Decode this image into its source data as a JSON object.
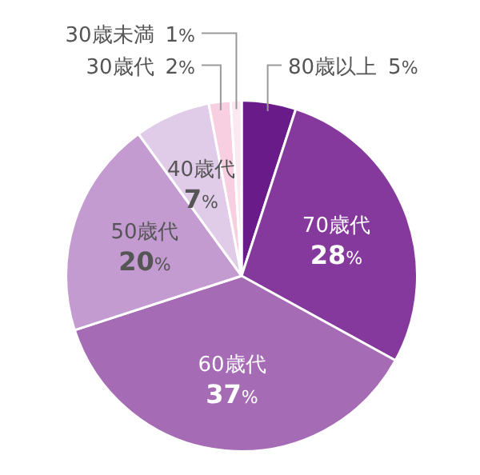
{
  "chart_data": {
    "type": "pie",
    "categories": [
      "80歳以上",
      "70歳代",
      "60歳代",
      "50歳代",
      "40歳代",
      "30歳代",
      "30歳未満"
    ],
    "values": [
      5,
      28,
      37,
      20,
      7,
      2,
      1
    ],
    "colors": [
      "#6a1b8a",
      "#85399c",
      "#a66bb5",
      "#c39bd0",
      "#e0cce8",
      "#f7cfe0",
      "#fbe8f0"
    ],
    "value_labels": [
      "5%",
      "28%",
      "37%",
      "20%",
      "7%",
      "2%",
      "1%"
    ],
    "legend": false
  }
}
